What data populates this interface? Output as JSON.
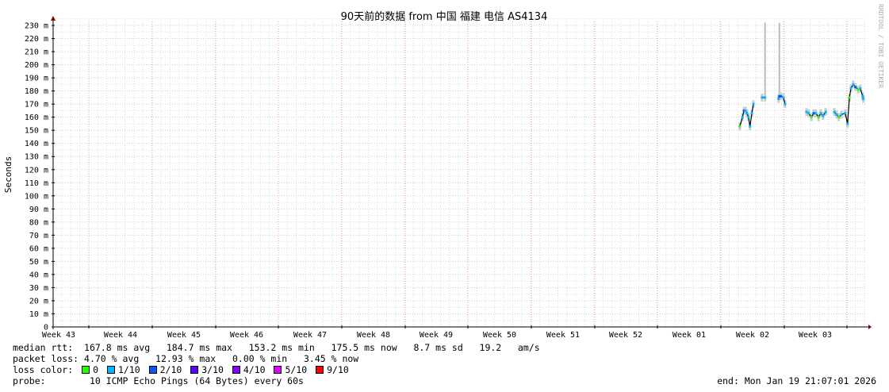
{
  "chart_data": {
    "type": "line",
    "title": "90天前的数据 from 中国 福建 电信 AS4134",
    "ylabel": "Seconds",
    "ylim": [
      0,
      230
    ],
    "y_unit_suffix": " m",
    "yticks": [
      "0",
      "10 m",
      "20 m",
      "30 m",
      "40 m",
      "50 m",
      "60 m",
      "70 m",
      "80 m",
      "90 m",
      "100 m",
      "110 m",
      "120 m",
      "130 m",
      "140 m",
      "150 m",
      "160 m",
      "170 m",
      "180 m",
      "190 m",
      "200 m",
      "210 m",
      "220 m",
      "230 m"
    ],
    "xticks": [
      "Week 43",
      "Week 44",
      "Week 45",
      "Week 46",
      "Week 47",
      "Week 48",
      "Week 49",
      "Week 50",
      "Week 51",
      "Week 52",
      "Week 01",
      "Week 02",
      "Week 03"
    ],
    "grid": true,
    "watermark": "RRDTOOL / TOBI OETIKER",
    "end": "2026-01-19T21:07:01",
    "span_days": 90,
    "series": [
      {
        "points": [
          [
            "2026-01-05T20:00",
            153,
            0
          ],
          [
            "2026-01-06T03:00",
            160,
            1
          ],
          [
            "2026-01-06T07:00",
            165,
            2
          ],
          [
            "2026-01-06T11:00",
            165,
            1
          ],
          [
            "2026-01-06T15:00",
            163,
            1
          ],
          [
            "2026-01-06T19:00",
            160,
            1
          ],
          [
            "2026-01-06T23:00",
            153,
            1
          ],
          [
            "2026-01-07T04:00",
            163,
            1
          ],
          [
            "2026-01-07T08:00",
            170,
            1
          ]
        ]
      },
      {
        "points": [
          [
            "2026-01-08T07:00",
            175,
            1
          ],
          [
            "2026-01-08T15:00",
            175,
            1
          ]
        ]
      },
      {
        "points": [
          [
            "2026-01-10T03:00",
            174,
            1
          ],
          [
            "2026-01-10T05:00",
            176,
            2
          ],
          [
            "2026-01-10T09:00",
            176,
            2
          ],
          [
            "2026-01-10T16:00",
            175,
            1
          ],
          [
            "2026-01-10T20:00",
            170,
            1
          ]
        ]
      },
      {
        "points": [
          [
            "2026-01-13T05:00",
            164,
            1
          ],
          [
            "2026-01-13T11:00",
            163,
            1
          ],
          [
            "2026-01-13T18:00",
            160,
            0
          ],
          [
            "2026-01-14T00:00",
            163,
            2
          ],
          [
            "2026-01-14T06:00",
            163,
            1
          ],
          [
            "2026-01-14T13:00",
            160,
            0
          ],
          [
            "2026-01-14T19:00",
            163,
            1
          ],
          [
            "2026-01-15T01:00",
            161,
            1
          ],
          [
            "2026-01-15T08:00",
            164,
            1
          ]
        ]
      },
      {
        "points": [
          [
            "2026-01-16T07:00",
            164,
            1
          ],
          [
            "2026-01-16T13:00",
            162,
            1
          ],
          [
            "2026-01-16T19:00",
            160,
            0
          ],
          [
            "2026-01-17T02:00",
            162,
            1
          ],
          [
            "2026-01-17T12:00",
            163,
            1
          ],
          [
            "2026-01-17T18:00",
            155,
            1
          ],
          [
            "2026-01-17T23:00",
            175,
            0
          ],
          [
            "2026-01-18T03:00",
            182,
            1
          ],
          [
            "2026-01-18T09:00",
            185,
            1
          ],
          [
            "2026-01-18T15:00",
            183,
            2
          ],
          [
            "2026-01-18T22:00",
            181,
            0
          ],
          [
            "2026-01-19T04:00",
            182,
            1
          ],
          [
            "2026-01-19T10:00",
            176,
            1
          ],
          [
            "2026-01-19T12:00",
            174,
            1
          ]
        ]
      }
    ],
    "spikes": [
      [
        "2026-01-08T15:00",
        175,
        232
      ],
      [
        "2026-01-10T05:00",
        174,
        232
      ]
    ]
  },
  "legend": {
    "median_label": "median rtt:",
    "median_values": "167.8 ms avg   184.7 ms max   153.2 ms min   175.5 ms now   8.7 ms sd   19.2   am/s",
    "loss_label": "packet loss:",
    "loss_values": "4.70 % avg   12.93 % max   0.00 % min   3.45 % now",
    "color_label": "loss color:",
    "colors": [
      {
        "label": "0",
        "color": "#26ff00"
      },
      {
        "label": "1/10",
        "color": "#00b8ff"
      },
      {
        "label": "2/10",
        "color": "#0059ff"
      },
      {
        "label": "3/10",
        "color": "#5e00ff"
      },
      {
        "label": "4/10",
        "color": "#7e00ff"
      },
      {
        "label": "5/10",
        "color": "#dd00ff"
      },
      {
        "label": "9/10",
        "color": "#ff0000"
      }
    ],
    "probe_label": "probe:",
    "probe_value": "10 ICMP Echo Pings (64 Bytes) every 60s",
    "end_text": "end: Mon Jan 19 21:07:01 2026"
  }
}
